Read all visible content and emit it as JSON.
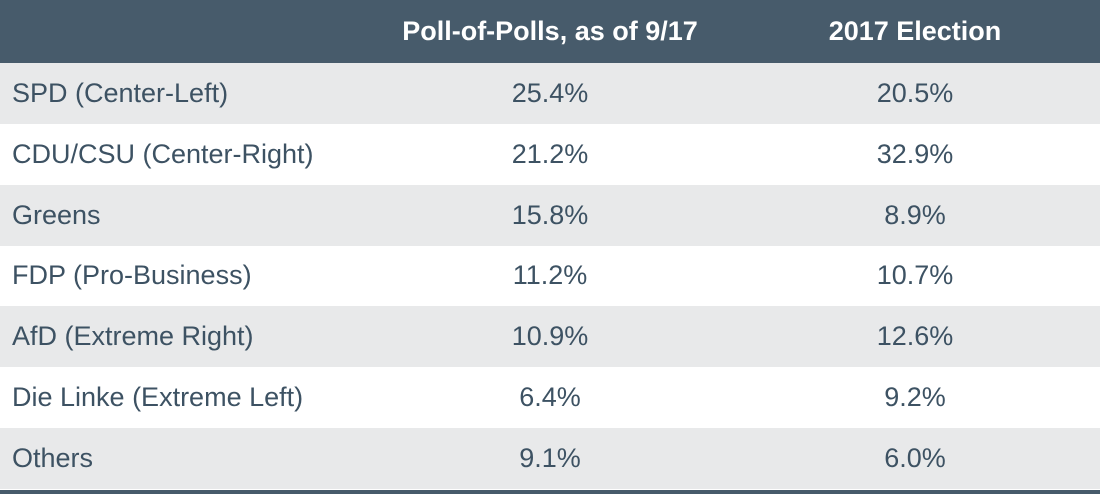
{
  "chart_data": {
    "type": "table",
    "columns": [
      "",
      "Poll-of-Polls, as of 9/17",
      "2017 Election"
    ],
    "rows": [
      {
        "party": "SPD (Center-Left)",
        "poll": "25.4%",
        "election": "20.5%"
      },
      {
        "party": "CDU/CSU (Center-Right)",
        "poll": "21.2%",
        "election": "32.9%"
      },
      {
        "party": "Greens",
        "poll": "15.8%",
        "election": "8.9%"
      },
      {
        "party": "FDP (Pro-Business)",
        "poll": "11.2%",
        "election": "10.7%"
      },
      {
        "party": "AfD (Extreme Right)",
        "poll": "10.9%",
        "election": "12.6%"
      },
      {
        "party": "Die Linke (Extreme Left)",
        "poll": "6.4%",
        "election": "9.2%"
      },
      {
        "party": "Others",
        "poll": "9.1%",
        "election": "6.0%"
      }
    ],
    "colors": {
      "header_bg": "#475b6b",
      "header_text": "#ffffff",
      "row_shaded": "#e8e9ea",
      "row_plain": "#ffffff",
      "body_text": "#3d5263"
    }
  }
}
